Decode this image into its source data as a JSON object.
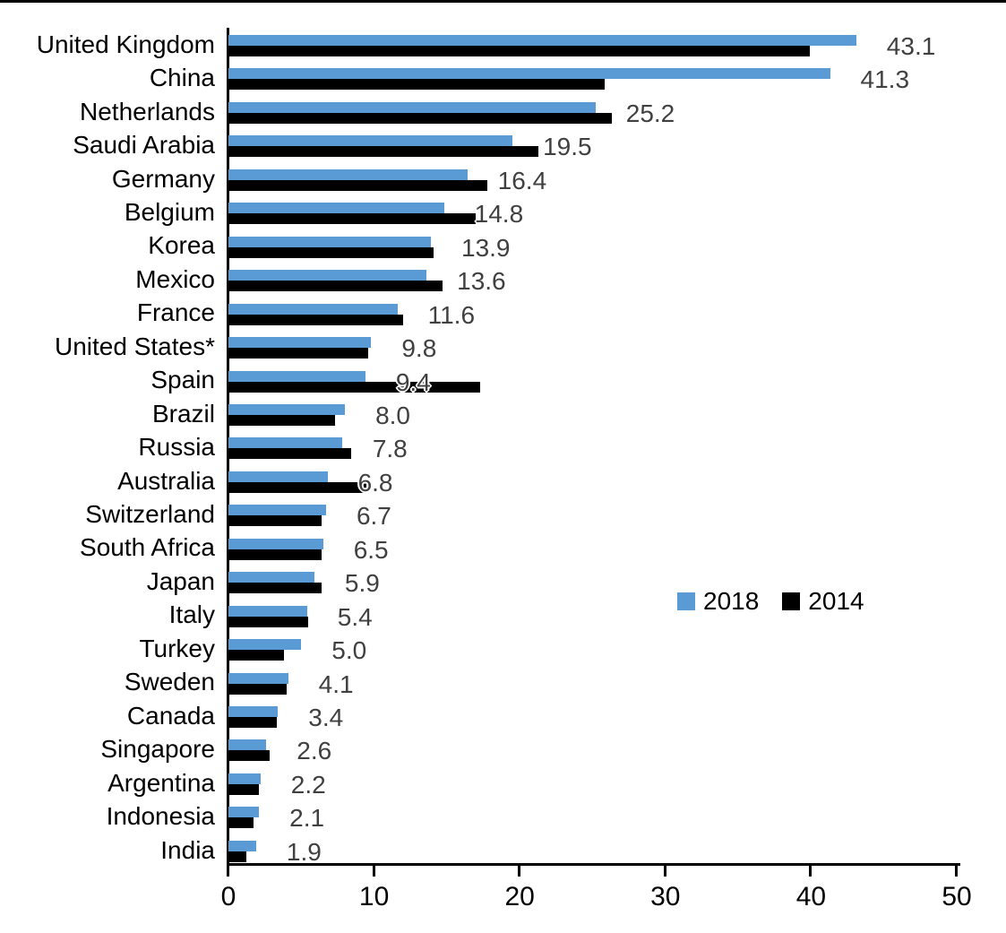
{
  "legend": {
    "items": [
      {
        "label": "2018",
        "color": "#5B9BD5"
      },
      {
        "label": "2014",
        "color": "#000000"
      }
    ]
  },
  "colors": {
    "bar_2018": "#5B9BD5",
    "bar_2014": "#000000",
    "value_label": "#404040",
    "axis": "#000000",
    "background": "#ffffff"
  },
  "chart_data": {
    "type": "bar",
    "orientation": "horizontal",
    "title": "",
    "xlabel": "",
    "ylabel": "",
    "xlim": [
      0,
      50
    ],
    "x_ticks": [
      "0",
      "10",
      "20",
      "30",
      "40",
      "50"
    ],
    "grid": false,
    "legend_position": "center-right",
    "categories": [
      "United Kingdom",
      "China",
      "Netherlands",
      "Saudi Arabia",
      "Germany",
      "Belgium",
      "Korea",
      "Mexico",
      "France",
      "United States*",
      "Spain",
      "Brazil",
      "Russia",
      "Australia",
      "Switzerland",
      "South Africa",
      "Japan",
      "Italy",
      "Turkey",
      "Sweden",
      "Canada",
      "Singapore",
      "Argentina",
      "Indonesia",
      "India"
    ],
    "series": [
      {
        "name": "2018",
        "color": "#5B9BD5",
        "values": [
          43.1,
          41.3,
          25.2,
          19.5,
          16.4,
          14.8,
          13.9,
          13.6,
          11.6,
          9.8,
          9.4,
          8.0,
          7.8,
          6.8,
          6.7,
          6.5,
          5.9,
          5.4,
          5.0,
          4.1,
          3.4,
          2.6,
          2.2,
          2.1,
          1.9
        ],
        "data_labels": [
          "43.1",
          "41.3",
          "25.2",
          "19.5",
          "16.4",
          "14.8",
          "13.9",
          "13.6",
          "11.6",
          "9.8",
          "9.4",
          "8.0",
          "7.8",
          "6.8",
          "6.7",
          "6.5",
          "5.9",
          "5.4",
          "5.0",
          "4.1",
          "3.4",
          "2.6",
          "2.2",
          "2.1",
          "1.9"
        ]
      },
      {
        "name": "2014",
        "color": "#000000",
        "values": [
          39.9,
          25.8,
          26.3,
          21.3,
          17.8,
          17.0,
          14.1,
          14.7,
          12.0,
          9.6,
          17.3,
          7.3,
          8.4,
          9.5,
          6.4,
          6.4,
          6.4,
          5.5,
          3.8,
          4.0,
          3.3,
          2.8,
          2.1,
          1.7,
          1.2
        ],
        "data_labels": null
      }
    ]
  }
}
